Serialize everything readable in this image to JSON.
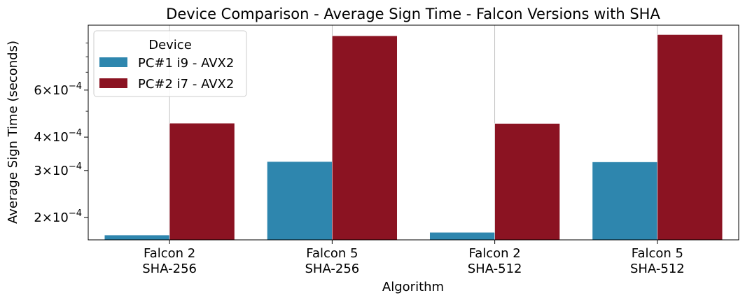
{
  "chart_data": {
    "type": "bar",
    "title": "Device Comparison - Average Sign Time - Falcon Versions with SHA",
    "xlabel": "Algorithm",
    "ylabel": "Average Sign Time (seconds)",
    "yscale": "log",
    "ylim": [
      0.000165,
      0.00105
    ],
    "grid": "vertical",
    "categories": [
      [
        "Falcon 2",
        "SHA-256"
      ],
      [
        "Falcon 5",
        "SHA-256"
      ],
      [
        "Falcon 2",
        "SHA-512"
      ],
      [
        "Falcon 5",
        "SHA-512"
      ]
    ],
    "yticks": [
      {
        "base": "2",
        "exp": "−4",
        "value": 0.0002
      },
      {
        "base": "3",
        "exp": "−4",
        "value": 0.0003
      },
      {
        "base": "4",
        "exp": "−4",
        "value": 0.0004
      },
      {
        "base": "6",
        "exp": "−4",
        "value": 0.0006
      }
    ],
    "minor_ticks": [
      0.0005,
      0.0007,
      0.0008,
      0.0009
    ],
    "legend": {
      "title": "Device",
      "position": "top-left"
    },
    "series": [
      {
        "name": "PC#1 i9 - AVX2",
        "color": "#2e86ae",
        "values": [
          0.000172,
          0.000324,
          0.000176,
          0.000323
        ]
      },
      {
        "name": "PC#2 i7 - AVX2",
        "color": "#8b1322",
        "values": [
          0.000451,
          0.000958,
          0.00045,
          0.000968
        ]
      }
    ]
  }
}
